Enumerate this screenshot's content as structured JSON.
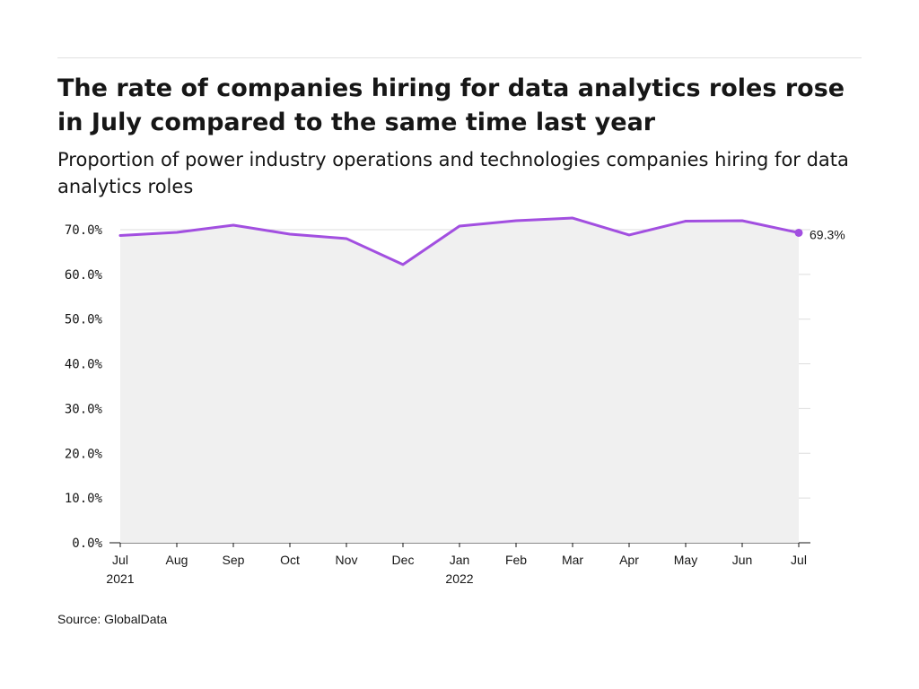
{
  "header": {
    "title": "The rate of companies hiring for data analytics roles rose in July compared to the same time last year",
    "subtitle": "Proportion of power industry operations and technologies companies hiring for data analytics roles"
  },
  "footer": {
    "source": "Source: GlobalData"
  },
  "colors": {
    "line": "#a24fe0",
    "area": "#f0f0f0",
    "grid": "#dddddd",
    "axis": "#161616"
  },
  "chart_data": {
    "type": "area",
    "title": "The rate of companies hiring for data analytics roles rose in July compared to the same time last year",
    "subtitle": "Proportion of power industry operations and technologies companies hiring for data analytics roles",
    "xlabel": "",
    "ylabel": "",
    "categories": [
      "Jul",
      "Aug",
      "Sep",
      "Oct",
      "Nov",
      "Dec",
      "Jan",
      "Feb",
      "Mar",
      "Apr",
      "May",
      "Jun",
      "Jul"
    ],
    "year_labels": [
      "2021",
      "",
      "",
      "",
      "",
      "",
      "2022",
      "",
      "",
      "",
      "",
      "",
      ""
    ],
    "series": [
      {
        "values": [
          68.7,
          69.4,
          71.0,
          69.0,
          68.0,
          62.2,
          70.8,
          72.0,
          72.6,
          68.8,
          71.9,
          72.0,
          69.3
        ]
      }
    ],
    "end_label": "69.3%",
    "ylim": [
      0,
      72
    ],
    "yticks": [
      0,
      10,
      20,
      30,
      40,
      50,
      60,
      70
    ],
    "ytick_labels": [
      "0.0%",
      "10.0%",
      "20.0%",
      "30.0%",
      "40.0%",
      "50.0%",
      "60.0%",
      "70.0%"
    ],
    "grid": true,
    "legend": "none"
  }
}
